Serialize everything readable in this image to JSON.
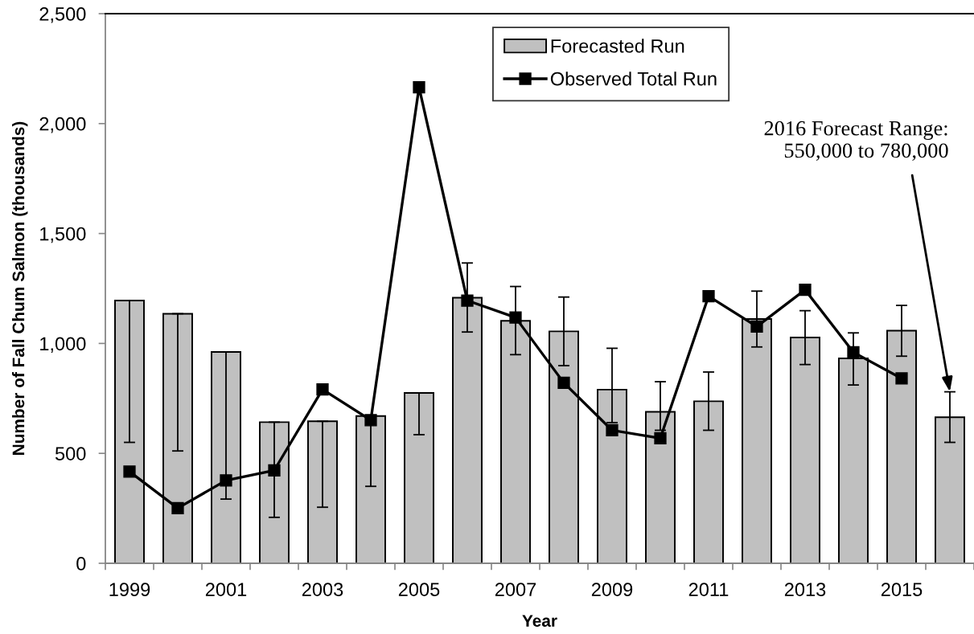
{
  "chart_data": {
    "type": "bar",
    "xlabel": "Year",
    "ylabel": "Number of Fall Chum Salmon (thousands)",
    "x": [
      1999,
      2000,
      2001,
      2002,
      2003,
      2004,
      2005,
      2006,
      2007,
      2008,
      2009,
      2010,
      2011,
      2012,
      2013,
      2014,
      2015,
      2016
    ],
    "series": [
      {
        "name": "Forecasted Run",
        "color": "#c0c0c0",
        "values": [
          1195,
          1135,
          961,
          642,
          646,
          670,
          775,
          1208,
          1103,
          1055,
          790,
          689,
          737,
          1111,
          1027,
          932,
          1058,
          664
        ],
        "errors": [
          [
            550,
            1195
          ],
          [
            511,
            1135
          ],
          [
            292,
            961
          ],
          [
            209,
            642
          ],
          [
            255,
            646
          ],
          [
            350,
            670
          ],
          [
            585,
            775
          ],
          [
            1052,
            1366
          ],
          [
            949,
            1259
          ],
          [
            899,
            1211
          ],
          [
            640,
            978
          ],
          [
            605,
            826
          ],
          [
            605,
            870
          ],
          [
            984,
            1238
          ],
          [
            904,
            1149
          ],
          [
            811,
            1048
          ],
          [
            942,
            1173
          ],
          [
            550,
            780
          ]
        ]
      },
      {
        "name": "Observed Total Run",
        "type": "line",
        "color": "#000000",
        "marker": "square",
        "line_style": "solid",
        "values": [
          417,
          251,
          377,
          423,
          791,
          651,
          2165,
          1195,
          1118,
          821,
          605,
          569,
          1215,
          1077,
          1244,
          960,
          841,
          null
        ]
      }
    ],
    "xlim": [
      1998.5,
      2016.5
    ],
    "xticks": [
      1999,
      2001,
      2003,
      2005,
      2007,
      2009,
      2011,
      2013,
      2015,
      {
        "value": 1998.5,
        "label": null
      },
      {
        "value": 1999.5,
        "label": null
      },
      {
        "value": 2000.5,
        "label": null
      },
      {
        "value": 2001.5,
        "label": null
      },
      {
        "value": 2002.5,
        "label": null
      },
      {
        "value": 2003.5,
        "label": null
      },
      {
        "value": 2004.5,
        "label": null
      },
      {
        "value": 2005.5,
        "label": null
      },
      {
        "value": 2006.5,
        "label": null
      },
      {
        "value": 2007.5,
        "label": null
      },
      {
        "value": 2008.5,
        "label": null
      },
      {
        "value": 2009.5,
        "label": null
      },
      {
        "value": 2010.5,
        "label": null
      },
      {
        "value": 2011.5,
        "label": null
      },
      {
        "value": 2012.5,
        "label": null
      },
      {
        "value": 2013.5,
        "label": null
      },
      {
        "value": 2014.5,
        "label": null
      },
      {
        "value": 2015.5,
        "label": null
      },
      {
        "value": 2016.5,
        "label": null
      }
    ],
    "ylim": [
      0,
      2500
    ],
    "yticks": [
      0,
      500,
      {
        "value": 1000,
        "label": "1,000"
      },
      {
        "value": 1500,
        "label": "1,500"
      },
      {
        "value": 2000,
        "label": "2,000"
      },
      {
        "value": 2500,
        "label": "2,500"
      }
    ],
    "legend": "top",
    "annotations": [
      {
        "text": "2016 Forecast Range:\n550,000 to 780,000",
        "x": 2016,
        "y": 780
      }
    ]
  }
}
